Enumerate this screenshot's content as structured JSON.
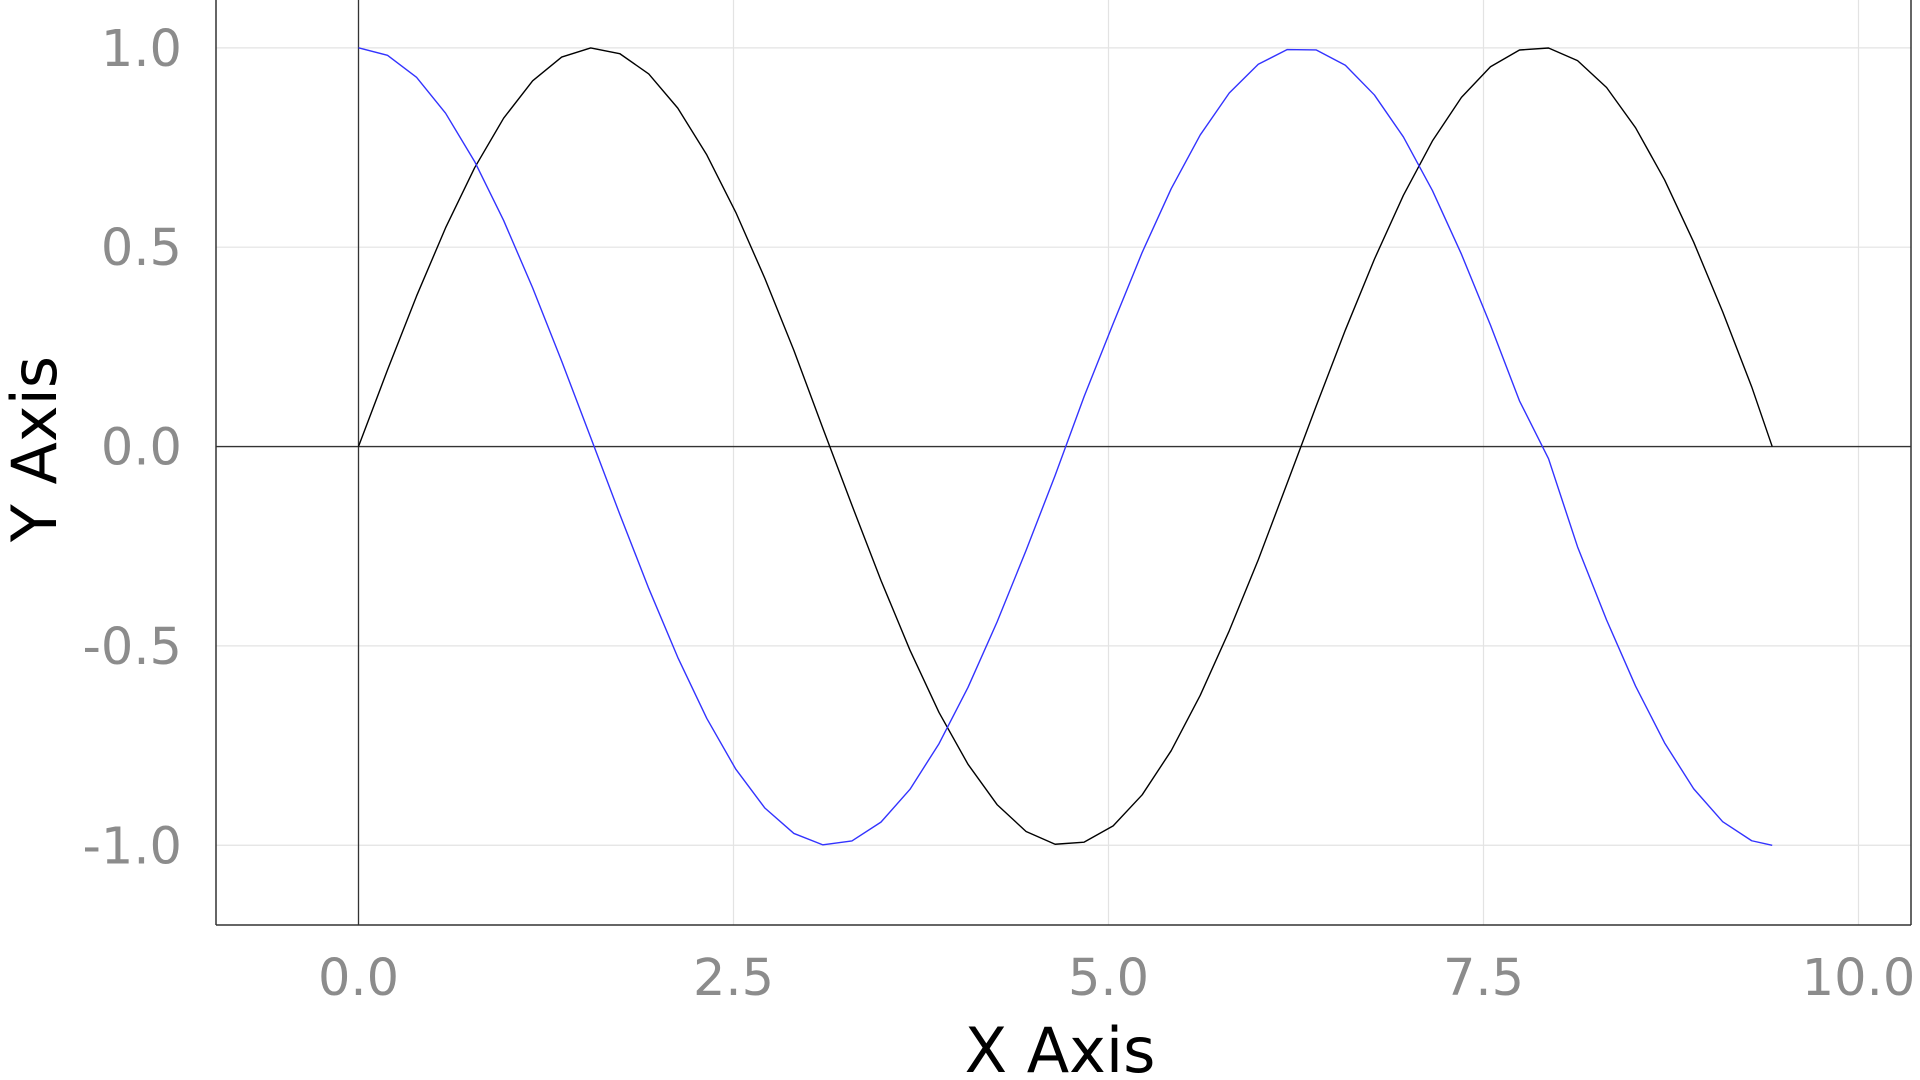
{
  "chart_data": {
    "type": "line",
    "title": "",
    "xlabel": "X Axis",
    "ylabel": "Y Axis",
    "xlim": [
      -0.95,
      10.35
    ],
    "ylim": [
      -1.2,
      1.12
    ],
    "xticks": [
      0.0,
      2.5,
      5.0,
      7.5,
      10.0
    ],
    "xtick_labels": [
      "0.0",
      "2.5",
      "5.0",
      "7.5",
      "10.0"
    ],
    "yticks": [
      1.0,
      0.5,
      0.0,
      -0.5,
      -1.0
    ],
    "ytick_labels": [
      "1.0",
      "0.5",
      "0.0",
      "-0.5",
      "-1.0"
    ],
    "grid": true,
    "zero_lines": true,
    "x": [
      0.0,
      0.1935,
      0.387,
      0.5805,
      0.774,
      0.9675,
      1.161,
      1.3545,
      1.548,
      1.7415,
      1.935,
      2.1285,
      2.322,
      2.5155,
      2.709,
      2.9025,
      3.096,
      3.2895,
      3.483,
      3.6765,
      3.87,
      4.0635,
      4.257,
      4.4505,
      4.644,
      4.8375,
      5.031,
      5.2245,
      5.418,
      5.6115,
      5.805,
      5.9985,
      6.192,
      6.3855,
      6.579,
      6.7725,
      6.966,
      7.1595,
      7.353,
      7.5465,
      7.74,
      7.9335,
      8.127,
      8.3205,
      8.514,
      8.7075,
      8.901,
      9.0945,
      9.288,
      9.4248
    ],
    "series": [
      {
        "color": "#000000",
        "values": [
          0.0,
          0.1923,
          0.3774,
          0.5485,
          0.6991,
          0.8236,
          0.9173,
          0.9768,
          0.9998,
          0.9855,
          0.9345,
          0.8488,
          0.7315,
          0.5873,
          0.4218,
          0.2413,
          0.0456,
          -0.147,
          -0.3356,
          -0.5107,
          -0.6668,
          -0.797,
          -0.898,
          -0.9655,
          -0.9975,
          -0.9922,
          -0.9513,
          -0.8735,
          -0.7628,
          -0.624,
          -0.4621,
          -0.284,
          -0.0911,
          0.1025,
          0.2922,
          0.4698,
          0.6301,
          0.7666,
          0.8757,
          0.9525,
          0.9946,
          0.9996,
          0.9679,
          0.9005,
          0.7995,
          0.6687,
          0.5129,
          0.338,
          0.1498,
          0.0
        ]
      },
      {
        "color": "#3333ff",
        "values": [
          1.0,
          0.9813,
          0.9261,
          0.8361,
          0.715,
          0.5671,
          0.398,
          0.2142,
          0.0228,
          -0.1695,
          -0.3559,
          -0.5288,
          -0.6819,
          -0.8093,
          -0.9066,
          -0.9703,
          -0.999,
          -0.9891,
          -0.942,
          -0.8597,
          -0.7453,
          -0.6039,
          -0.4401,
          -0.2605,
          -0.0725,
          0.1255,
          0.3084,
          0.4869,
          0.6467,
          0.7815,
          0.8867,
          0.9588,
          0.9958,
          0.9947,
          0.9563,
          0.8819,
          0.7765,
          0.642,
          0.4824,
          0.3045,
          0.1145,
          -0.0305,
          -0.2515,
          -0.435,
          -0.601,
          -0.7435,
          -0.8583,
          -0.9408,
          -0.9887,
          -1.0
        ]
      }
    ]
  }
}
